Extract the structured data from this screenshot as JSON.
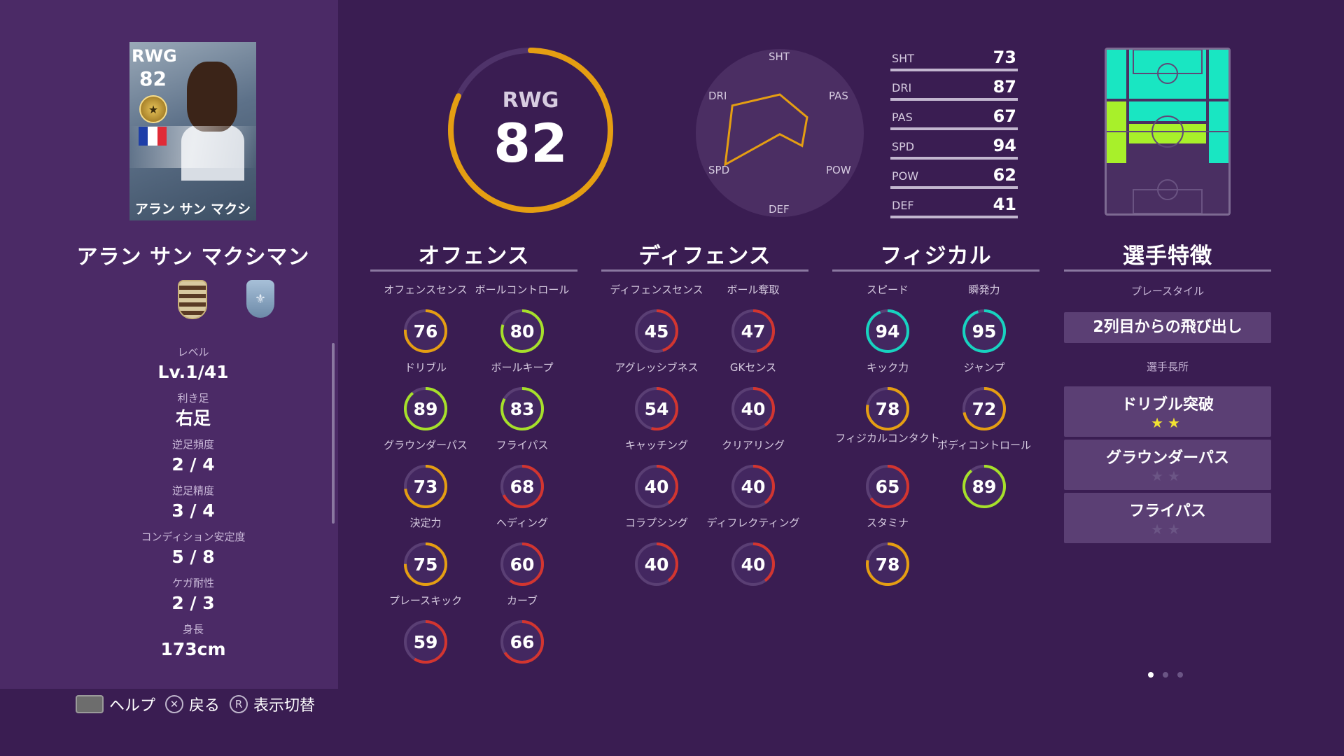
{
  "player": {
    "card_position": "RWG",
    "card_rating": "82",
    "card_name": "アラン サン マクシマン",
    "name": "アラン サン マクシマン"
  },
  "info": [
    {
      "label": "レベル",
      "value": "Lv.1/41"
    },
    {
      "label": "利き足",
      "value": "右足"
    },
    {
      "label": "逆足頻度",
      "value": "2 / 4"
    },
    {
      "label": "逆足精度",
      "value": "3 / 4"
    },
    {
      "label": "コンディション安定度",
      "value": "5 / 8"
    },
    {
      "label": "ケガ耐性",
      "value": "2 / 3"
    },
    {
      "label": "身長",
      "value": "173cm"
    }
  ],
  "overall": {
    "position": "RWG",
    "rating": "82",
    "fraction": 0.82,
    "color": "#e59e12"
  },
  "radar": {
    "labels": [
      "SHT",
      "PAS",
      "POW",
      "DEF",
      "SPD",
      "DRI"
    ],
    "values": [
      73,
      67,
      62,
      41,
      94,
      87
    ]
  },
  "stat_bars": [
    {
      "label": "SHT",
      "value": "73"
    },
    {
      "label": "DRI",
      "value": "87"
    },
    {
      "label": "PAS",
      "value": "67"
    },
    {
      "label": "SPD",
      "value": "94"
    },
    {
      "label": "POW",
      "value": "62"
    },
    {
      "label": "DEF",
      "value": "41"
    }
  ],
  "columns": [
    {
      "title": "オフェンス",
      "stats": [
        {
          "name": "オフェンスセンス",
          "value": "76"
        },
        {
          "name": "ボールコントロール",
          "value": "80"
        },
        {
          "name": "ドリブル",
          "value": "89"
        },
        {
          "name": "ボールキープ",
          "value": "83"
        },
        {
          "name": "グラウンダーパス",
          "value": "73"
        },
        {
          "name": "フライパス",
          "value": "68"
        },
        {
          "name": "決定力",
          "value": "75"
        },
        {
          "name": "ヘディング",
          "value": "60"
        },
        {
          "name": "プレースキック",
          "value": "59"
        },
        {
          "name": "カーブ",
          "value": "66"
        }
      ]
    },
    {
      "title": "ディフェンス",
      "stats": [
        {
          "name": "ディフェンスセンス",
          "value": "45"
        },
        {
          "name": "ボール奪取",
          "value": "47"
        },
        {
          "name": "アグレッシブネス",
          "value": "54"
        },
        {
          "name": "GKセンス",
          "value": "40"
        },
        {
          "name": "キャッチング",
          "value": "40"
        },
        {
          "name": "クリアリング",
          "value": "40"
        },
        {
          "name": "コラプシング",
          "value": "40"
        },
        {
          "name": "ディフレクティング",
          "value": "40"
        }
      ]
    },
    {
      "title": "フィジカル",
      "stats": [
        {
          "name": "スピード",
          "value": "94"
        },
        {
          "name": "瞬発力",
          "value": "95"
        },
        {
          "name": "キック力",
          "value": "78"
        },
        {
          "name": "ジャンプ",
          "value": "72"
        },
        {
          "name": "フィジカルコンタクト",
          "value": "65"
        },
        {
          "name": "ボディコントロール",
          "value": "89"
        },
        {
          "name": "スタミナ",
          "value": "78"
        }
      ]
    }
  ],
  "traits": {
    "title": "選手特徴",
    "playstyle_label": "プレースタイル",
    "playstyle": "2列目からの飛び出し",
    "skills_label": "選手長所",
    "skills": [
      {
        "name": "ドリブル突破",
        "stars": 2
      },
      {
        "name": "グラウンダーパス",
        "stars": 0
      },
      {
        "name": "フライパス",
        "stars": 0
      }
    ]
  },
  "hints": [
    {
      "icon": "touchpad-icon",
      "label": "ヘルプ"
    },
    {
      "icon": "cross-button-icon",
      "key": "✕",
      "label": "戻る"
    },
    {
      "icon": "r-button-icon",
      "key": "R",
      "label": "表示切替"
    }
  ],
  "colors": {
    "background": "#3a1d52",
    "panel": "#4b2a66",
    "ring_red": "#d3352f",
    "ring_orange": "#e59e12",
    "ring_green": "#a6e02a",
    "ring_cyan": "#17d3c0",
    "pitch_cyan": "#19e6c2",
    "pitch_green": "#a8f02a"
  },
  "pitch_zones": "CF, LWF, RWF, SS, LMF, RMF, AMF, CMF"
}
